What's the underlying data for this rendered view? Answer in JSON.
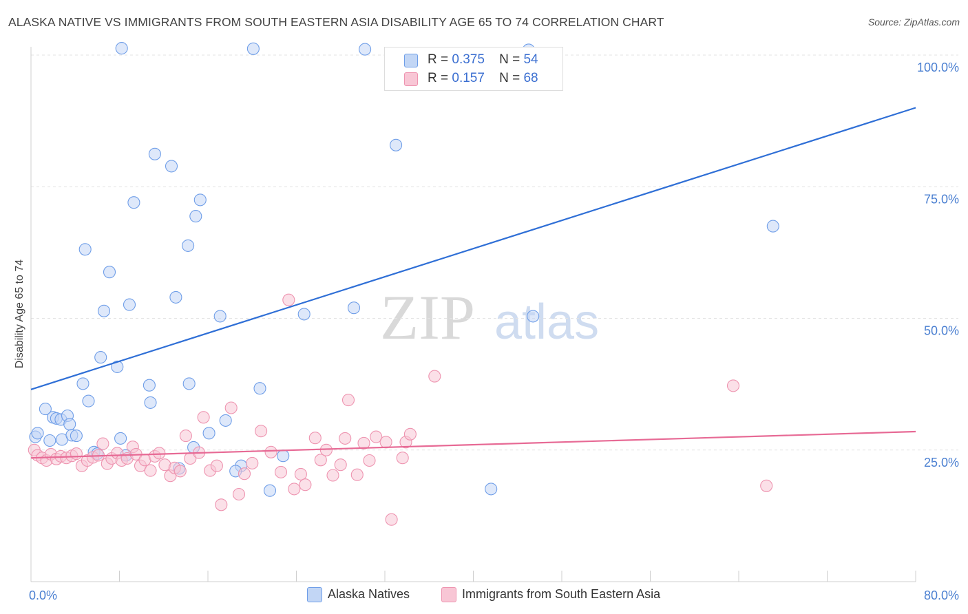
{
  "title": "ALASKA NATIVE VS IMMIGRANTS FROM SOUTH EASTERN ASIA DISABILITY AGE 65 TO 74 CORRELATION CHART",
  "source": "Source: ZipAtlas.com",
  "watermark": {
    "zip": "ZIP",
    "atlas": "atlas"
  },
  "legend": {
    "r_label": "R =",
    "n_label": "N =",
    "rows": [
      {
        "r": "0.375",
        "n": "54"
      },
      {
        "r": "0.157",
        "n": "68"
      }
    ]
  },
  "chart_data": {
    "type": "scatter",
    "title": "ALASKA NATIVE VS IMMIGRANTS FROM SOUTH EASTERN ASIA DISABILITY AGE 65 TO 74 CORRELATION CHART",
    "xlabel": "",
    "ylabel": "Disability Age 65 to 74",
    "xlim": [
      0,
      80
    ],
    "ylim": [
      0,
      100
    ],
    "x_tick_labels": [
      "0.0%",
      "80.0%"
    ],
    "y_ticks": [
      25,
      50,
      75,
      100
    ],
    "y_tick_labels": [
      "25.0%",
      "50.0%",
      "75.0%",
      "100.0%"
    ],
    "grid": true,
    "legend_position": "top-center",
    "series": [
      {
        "name": "Alaska Natives",
        "color": "#6f9ee8",
        "fill": "#c2d6f5",
        "r": "0.375",
        "n": "54",
        "trend": [
          [
            0,
            36.5
          ],
          [
            80,
            90.0
          ]
        ],
        "points": [
          [
            0.4,
            27.5
          ],
          [
            0.6,
            28.2
          ],
          [
            1.3,
            32.8
          ],
          [
            1.7,
            26.8
          ],
          [
            2.0,
            31.2
          ],
          [
            2.3,
            31.0
          ],
          [
            2.7,
            30.8
          ],
          [
            2.8,
            27.0
          ],
          [
            3.3,
            31.5
          ],
          [
            3.5,
            29.9
          ],
          [
            3.7,
            27.8
          ],
          [
            4.1,
            27.7
          ],
          [
            4.7,
            37.6
          ],
          [
            4.9,
            63.1
          ],
          [
            5.2,
            34.3
          ],
          [
            5.7,
            24.6
          ],
          [
            6.0,
            24.3
          ],
          [
            6.3,
            42.6
          ],
          [
            6.6,
            51.4
          ],
          [
            7.1,
            58.8
          ],
          [
            7.8,
            40.8
          ],
          [
            8.1,
            27.2
          ],
          [
            8.2,
            101.3
          ],
          [
            8.6,
            24.0
          ],
          [
            8.9,
            52.6
          ],
          [
            9.3,
            72.0
          ],
          [
            10.7,
            37.3
          ],
          [
            10.8,
            34.0
          ],
          [
            11.2,
            81.2
          ],
          [
            12.7,
            78.9
          ],
          [
            13.1,
            54.0
          ],
          [
            13.4,
            21.5
          ],
          [
            14.2,
            63.8
          ],
          [
            14.3,
            37.6
          ],
          [
            14.7,
            25.5
          ],
          [
            14.9,
            69.4
          ],
          [
            15.3,
            72.5
          ],
          [
            16.1,
            28.2
          ],
          [
            17.1,
            50.4
          ],
          [
            17.6,
            30.6
          ],
          [
            19.0,
            22.0
          ],
          [
            20.1,
            101.2
          ],
          [
            20.7,
            36.7
          ],
          [
            21.6,
            17.3
          ],
          [
            22.8,
            23.9
          ],
          [
            24.7,
            50.8
          ],
          [
            29.2,
            52.0
          ],
          [
            30.2,
            101.1
          ],
          [
            33.0,
            82.9
          ],
          [
            41.6,
            17.6
          ],
          [
            45.4,
            50.4
          ],
          [
            67.1,
            67.5
          ],
          [
            45.0,
            101.0
          ],
          [
            18.5,
            21.0
          ]
        ]
      },
      {
        "name": "Immigrants from South Eastern Asia",
        "color": "#ee94b0",
        "fill": "#f8c6d5",
        "r": "0.157",
        "n": "68",
        "trend": [
          [
            0,
            23.5
          ],
          [
            80,
            28.5
          ]
        ],
        "points": [
          [
            0.3,
            25.0
          ],
          [
            0.6,
            24.0
          ],
          [
            1.0,
            23.5
          ],
          [
            1.4,
            23.0
          ],
          [
            1.8,
            24.2
          ],
          [
            2.3,
            23.3
          ],
          [
            2.7,
            23.8
          ],
          [
            3.2,
            23.5
          ],
          [
            3.7,
            23.9
          ],
          [
            4.1,
            24.3
          ],
          [
            4.6,
            22.0
          ],
          [
            5.1,
            23.0
          ],
          [
            5.6,
            23.6
          ],
          [
            6.1,
            24.0
          ],
          [
            6.5,
            26.2
          ],
          [
            6.9,
            22.4
          ],
          [
            7.3,
            23.4
          ],
          [
            7.8,
            24.4
          ],
          [
            8.2,
            23.0
          ],
          [
            8.7,
            23.4
          ],
          [
            9.2,
            25.6
          ],
          [
            9.5,
            24.2
          ],
          [
            9.9,
            22.0
          ],
          [
            10.3,
            23.1
          ],
          [
            10.8,
            21.1
          ],
          [
            11.2,
            23.8
          ],
          [
            11.6,
            24.4
          ],
          [
            12.1,
            22.2
          ],
          [
            12.6,
            20.1
          ],
          [
            13.0,
            21.6
          ],
          [
            13.5,
            21.0
          ],
          [
            14.0,
            27.7
          ],
          [
            14.4,
            23.4
          ],
          [
            15.2,
            24.5
          ],
          [
            15.6,
            31.2
          ],
          [
            16.2,
            21.1
          ],
          [
            16.8,
            22.0
          ],
          [
            17.2,
            14.6
          ],
          [
            18.1,
            33.0
          ],
          [
            18.8,
            16.6
          ],
          [
            19.3,
            20.5
          ],
          [
            20.0,
            22.5
          ],
          [
            20.8,
            28.6
          ],
          [
            21.7,
            24.6
          ],
          [
            22.6,
            20.8
          ],
          [
            23.3,
            53.5
          ],
          [
            23.8,
            17.6
          ],
          [
            24.4,
            20.4
          ],
          [
            24.8,
            18.4
          ],
          [
            25.7,
            27.3
          ],
          [
            26.2,
            23.1
          ],
          [
            26.7,
            25.0
          ],
          [
            27.3,
            20.2
          ],
          [
            28.0,
            22.2
          ],
          [
            28.7,
            34.5
          ],
          [
            29.5,
            20.3
          ],
          [
            30.1,
            26.3
          ],
          [
            30.6,
            23.0
          ],
          [
            31.2,
            27.5
          ],
          [
            32.1,
            26.5
          ],
          [
            32.6,
            11.8
          ],
          [
            33.6,
            23.5
          ],
          [
            33.9,
            26.5
          ],
          [
            34.3,
            28.0
          ],
          [
            36.5,
            39.0
          ],
          [
            63.5,
            37.2
          ],
          [
            66.5,
            18.2
          ],
          [
            28.4,
            27.2
          ]
        ]
      }
    ]
  }
}
